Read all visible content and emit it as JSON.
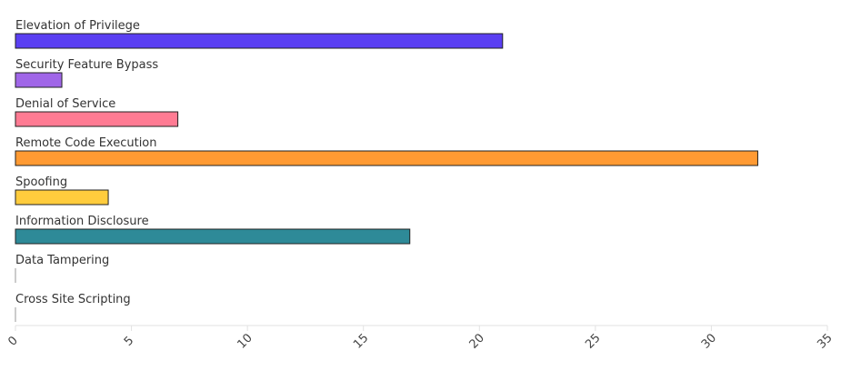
{
  "chart_data": {
    "type": "bar",
    "orientation": "horizontal",
    "categories": [
      "Elevation of Privilege",
      "Security Feature Bypass",
      "Denial of Service",
      "Remote Code Execution",
      "Spoofing",
      "Information Disclosure",
      "Data Tampering",
      "Cross Site Scripting"
    ],
    "values": [
      21,
      2,
      7,
      32,
      4,
      17,
      0,
      0
    ],
    "colors": [
      "#5a3ff2",
      "#a066e8",
      "#ff7b93",
      "#ff9a33",
      "#ffcc3d",
      "#2e8a98",
      "#888888",
      "#888888"
    ],
    "xlim": [
      0,
      35
    ],
    "xticks": [
      "0",
      "5",
      "10",
      "15",
      "20",
      "25",
      "30",
      "35"
    ],
    "title": "",
    "xlabel": "",
    "ylabel": "",
    "grid": false,
    "legend": "none"
  }
}
